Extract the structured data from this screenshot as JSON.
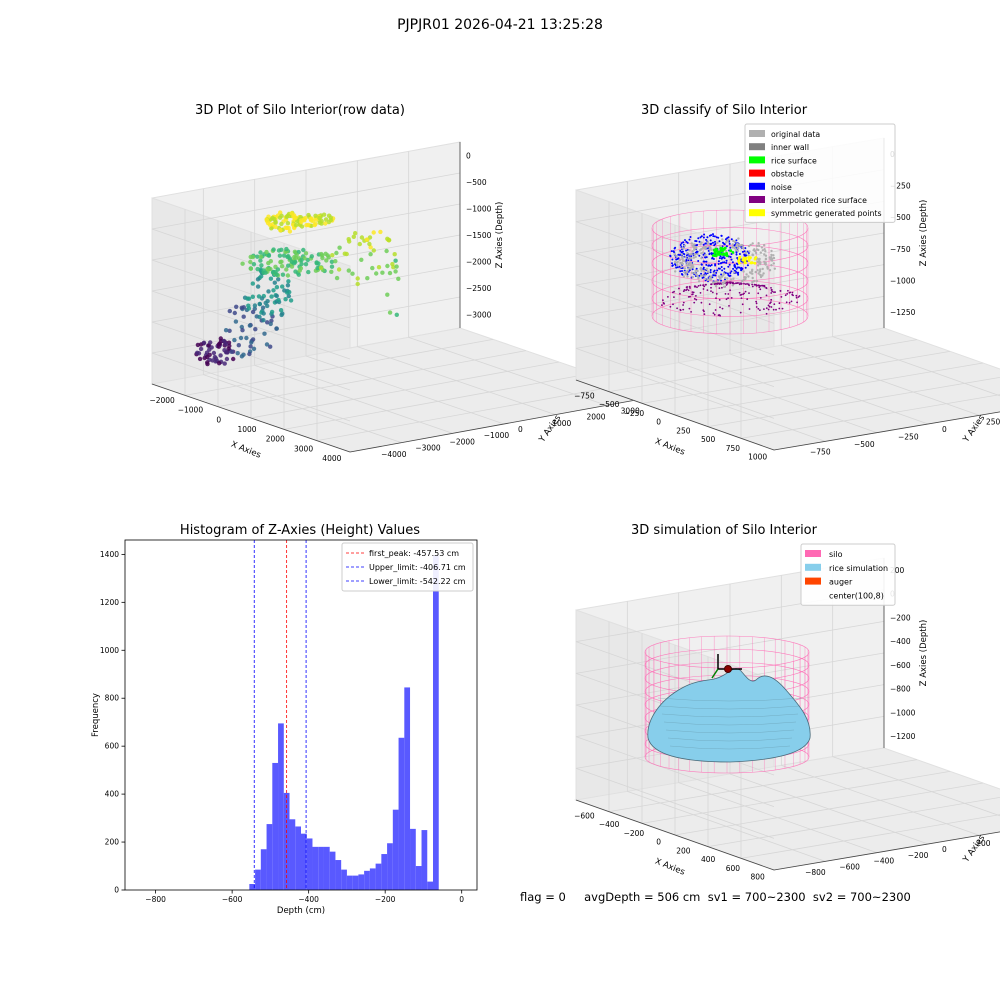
{
  "figure": {
    "suptitle": "PJPJR01 2026-04-21 13:25:28",
    "footer": "flag = 0     avgDepth = 506 cm  sv1 = 700~2300  sv2 = 700~2300"
  },
  "colors": {
    "silo": "#ff69b4",
    "rice_surface_sim": "#87ceeb",
    "auger": "#ff4500",
    "original": "#b0b0b0",
    "inner_wall": "#808080",
    "rice_surface": "#00ff00",
    "obstacle": "#ff0000",
    "noise": "#0000ff",
    "interpolated": "#800080",
    "symmetric": "#ffff00",
    "hist_bar": "#5050ff"
  },
  "chart_data": [
    {
      "type": "scatter",
      "title": "3D Plot of Silo Interior(row data)",
      "xlabel": "X Axies",
      "ylabel": "Y Axies",
      "zlabel": "Z Axies (Depth)",
      "xticks": [
        "−2000",
        "−1000",
        "0",
        "1000",
        "2000",
        "3000",
        "4000"
      ],
      "yticks": [
        "4000",
        "3000",
        "2000",
        "1000",
        "0",
        "−1000",
        "−2000",
        "−3000",
        "−4000"
      ],
      "zticks": [
        "0",
        "−500",
        "−1000",
        "−1500",
        "−2000",
        "−2500",
        "−3000"
      ],
      "colormap": "viridis",
      "grid": true
    },
    {
      "type": "scatter",
      "title": "3D classify of Silo Interior",
      "xlabel": "X Axies",
      "ylabel": "Y Axies",
      "zlabel": "Z Axies (Depth)",
      "xticks": [
        "−750",
        "−500",
        "−250",
        "0",
        "250",
        "500",
        "750",
        "1000"
      ],
      "yticks": [
        "750",
        "500",
        "250",
        "0",
        "−250",
        "−500",
        "−750"
      ],
      "zticks": [
        "0",
        "−250",
        "−500",
        "−750",
        "−1000",
        "−1250"
      ],
      "legend": [
        "original data",
        "inner wall",
        "rice surface",
        "obstacle",
        "noise",
        "interpolated rice surface",
        "symmetric generated points"
      ],
      "legend_position": "top-right",
      "grid": true
    },
    {
      "type": "bar",
      "title": "Histogram of Z-Axies (Height) Values",
      "xlabel": "Depth (cm)",
      "ylabel": "Frequency",
      "xlim": [
        -880,
        40
      ],
      "ylim": [
        0,
        1460
      ],
      "xticks": [
        -800,
        -600,
        -400,
        -200,
        0
      ],
      "xtick_labels": [
        "−800",
        "−600",
        "−400",
        "−200",
        "0"
      ],
      "yticks": [
        0,
        200,
        400,
        600,
        800,
        1000,
        1200,
        1400
      ],
      "bin_start": -555,
      "bin_width": 15,
      "values": [
        25,
        85,
        170,
        275,
        530,
        695,
        405,
        295,
        265,
        235,
        215,
        180,
        180,
        180,
        160,
        125,
        85,
        60,
        60,
        65,
        80,
        90,
        110,
        150,
        195,
        335,
        635,
        845,
        255,
        100,
        250,
        35,
        1395
      ],
      "lines": [
        {
          "label": "first_peak: -457.53 cm",
          "x": -457.53,
          "color": "#ff0000"
        },
        {
          "label": "Upper_limit: -406.71 cm",
          "x": -406.71,
          "color": "#0000ff"
        },
        {
          "label": "Lower_limit: -542.22 cm",
          "x": -542.22,
          "color": "#0000ff"
        }
      ],
      "legend_position": "top-right"
    },
    {
      "type": "surface",
      "title": "3D simulation of Silo Interior",
      "xlabel": "X Axies",
      "ylabel": "Y Axies",
      "zlabel": "Z Axies (Depth)",
      "xticks": [
        "−600",
        "−400",
        "−200",
        "0",
        "200",
        "400",
        "600",
        "800"
      ],
      "yticks": [
        "800",
        "600",
        "400",
        "200",
        "0",
        "−200",
        "−400",
        "−600",
        "−800"
      ],
      "zticks": [
        "200",
        "0",
        "−200",
        "−400",
        "−600",
        "−800",
        "−1000",
        "−1200"
      ],
      "legend": [
        "silo",
        "rice simulation",
        "auger",
        "center(100,8)"
      ],
      "legend_position": "top-right",
      "grid": true
    }
  ]
}
